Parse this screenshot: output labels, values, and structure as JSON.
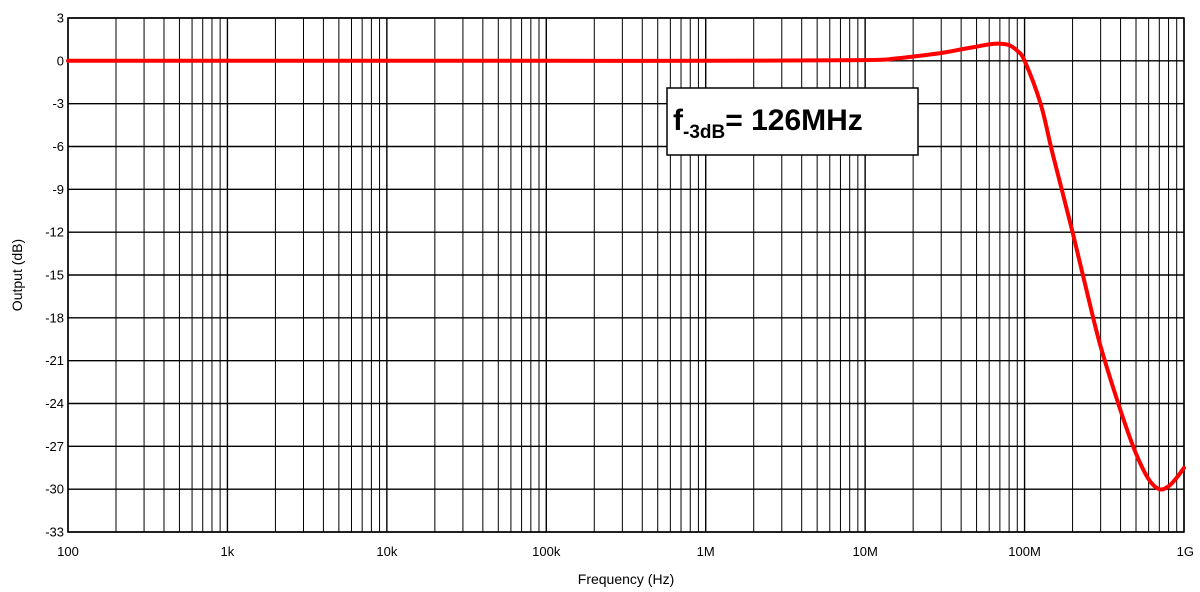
{
  "chart_data": {
    "type": "line",
    "xlabel": "Frequency (Hz)",
    "ylabel": "Output (dB)",
    "x_scale": "log",
    "xlim": [
      100,
      1000000000
    ],
    "ylim": [
      -33,
      3
    ],
    "x_ticks": [
      {
        "value": 100,
        "label": "100"
      },
      {
        "value": 1000,
        "label": "1k"
      },
      {
        "value": 10000,
        "label": "10k"
      },
      {
        "value": 100000,
        "label": "100k"
      },
      {
        "value": 1000000,
        "label": "1M"
      },
      {
        "value": 10000000,
        "label": "10M"
      },
      {
        "value": 100000000,
        "label": "100M"
      },
      {
        "value": 1000000000,
        "label": "1G"
      }
    ],
    "y_ticks": [
      3,
      0,
      -3,
      -6,
      -9,
      -12,
      -15,
      -18,
      -21,
      -24,
      -27,
      -30,
      -33
    ],
    "grid": true,
    "series": [
      {
        "color": "#ff0000",
        "x": [
          100,
          1000,
          10000,
          100000,
          1000000,
          10000000,
          15000000,
          20000000,
          30000000,
          40000000,
          50000000,
          60000000,
          70000000,
          80000000,
          90000000,
          100000000,
          126000000,
          150000000,
          200000000,
          250000000,
          300000000,
          400000000,
          500000000,
          600000000,
          700000000,
          800000000,
          900000000,
          1000000000
        ],
        "y": [
          0,
          0,
          0,
          0,
          0,
          0.05,
          0.15,
          0.3,
          0.55,
          0.8,
          1.0,
          1.15,
          1.2,
          1.1,
          0.7,
          0.0,
          -3,
          -6.5,
          -12,
          -16.5,
          -20,
          -24.5,
          -27.5,
          -29.3,
          -30,
          -29.8,
          -29.2,
          -28.5
        ]
      }
    ],
    "annotation": {
      "main": "f",
      "subscript": "-3dB",
      "suffix": "= 126MHz"
    }
  }
}
